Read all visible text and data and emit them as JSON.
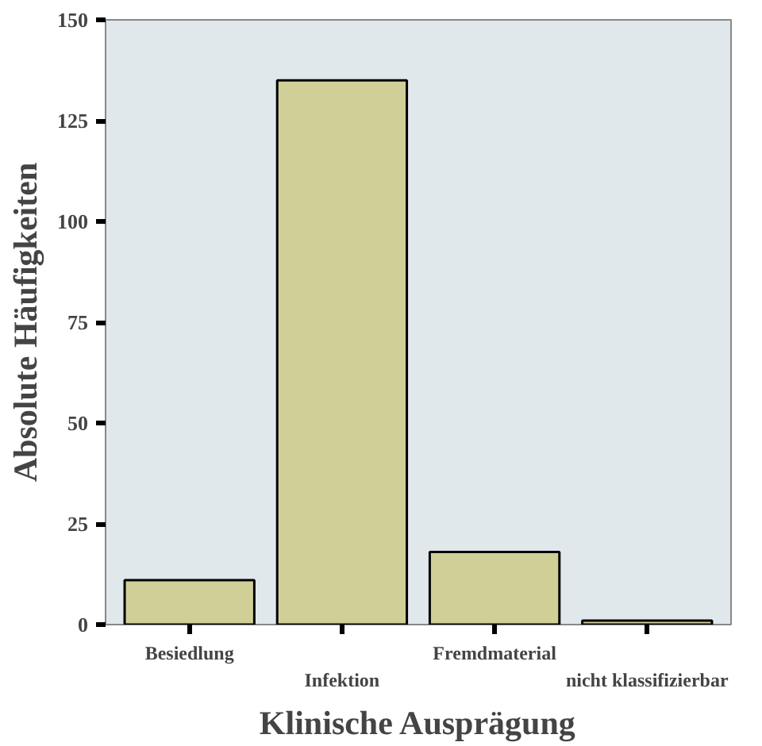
{
  "chart_data": {
    "type": "bar",
    "xlabel": "Klinische Ausprägung",
    "ylabel": "Absolute Häufigkeiten",
    "categories": [
      "Besiedlung",
      "Infektion",
      "Fremdmaterial",
      "nicht klassifizierbar"
    ],
    "values": [
      11,
      135,
      18,
      1
    ],
    "color": "#d0cf98",
    "ylim": [
      0,
      150
    ],
    "yticks": [
      0,
      25,
      50,
      75,
      100,
      125,
      150
    ],
    "grid": false
  }
}
